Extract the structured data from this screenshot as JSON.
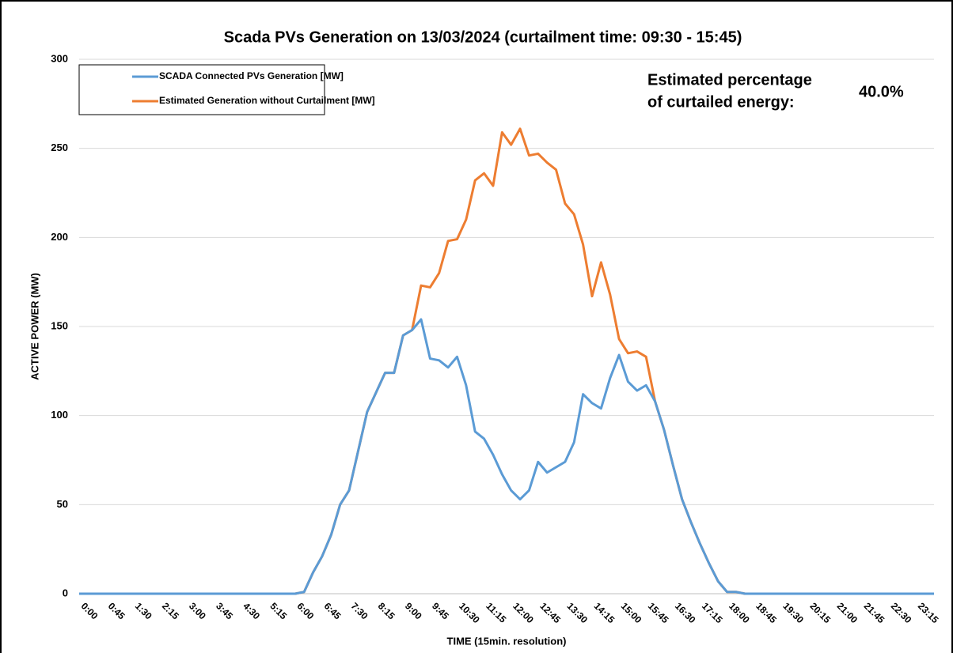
{
  "chart_data": {
    "type": "line",
    "title": "Scada PVs Generation on 13/03/2024 (curtailment time: 09:30 - 15:45)",
    "x_label": "TIME (15min. resolution)",
    "y_label": "ACTIVE POWER (MW)",
    "annotation_lines": [
      "Estimated percentage",
      "of curtailed energy:"
    ],
    "annotation_value": "40.0%",
    "categories": [
      "0:00",
      null,
      null,
      "0:45",
      null,
      null,
      "1:30",
      null,
      null,
      "2:15",
      null,
      null,
      "3:00",
      null,
      null,
      "3:45",
      null,
      null,
      "4:30",
      null,
      null,
      "5:15",
      null,
      null,
      "6:00",
      null,
      null,
      "6:45",
      null,
      null,
      "7:30",
      null,
      null,
      "8:15",
      null,
      null,
      "9:00",
      null,
      null,
      "9:45",
      null,
      null,
      "10:30",
      null,
      null,
      "11:15",
      null,
      null,
      "12:00",
      null,
      null,
      "12:45",
      null,
      null,
      "13:30",
      null,
      null,
      "14:15",
      null,
      null,
      "15:00",
      null,
      null,
      "15:45",
      null,
      null,
      "16:30",
      null,
      null,
      "17:15",
      null,
      null,
      "18:00",
      null,
      null,
      "18:45",
      null,
      null,
      "19:30",
      null,
      null,
      "20:15",
      null,
      null,
      "21:00",
      null,
      null,
      "21:45",
      null,
      null,
      "22:30",
      null,
      null,
      "23:15",
      null,
      null
    ],
    "series": [
      {
        "name": "SCADA Connected PVs Generation [MW]",
        "color": "#5b9bd5",
        "values": [
          0,
          0,
          0,
          0,
          0,
          0,
          0,
          0,
          0,
          0,
          0,
          0,
          0,
          0,
          0,
          0,
          0,
          0,
          0,
          0,
          0,
          0,
          0,
          0,
          0,
          1,
          12,
          21,
          33,
          50,
          58,
          80,
          102,
          113,
          124,
          124,
          145,
          148,
          154,
          132,
          131,
          127,
          133,
          117,
          91,
          87,
          78,
          67,
          58,
          53,
          58,
          74,
          68,
          71,
          74,
          85,
          112,
          107,
          104,
          121,
          134,
          119,
          114,
          117,
          108,
          92,
          72,
          53,
          40,
          28,
          17,
          7,
          1,
          1,
          0,
          0,
          0,
          0,
          0,
          0,
          0,
          0,
          0,
          0,
          0,
          0,
          0,
          0,
          0,
          0,
          0,
          0,
          0,
          0,
          0,
          0
        ]
      },
      {
        "name": "Estimated Generation without Curtailment [MW]",
        "color": "#ed7d31",
        "values": [
          0,
          0,
          0,
          0,
          0,
          0,
          0,
          0,
          0,
          0,
          0,
          0,
          0,
          0,
          0,
          0,
          0,
          0,
          0,
          0,
          0,
          0,
          0,
          0,
          0,
          1,
          12,
          21,
          33,
          50,
          58,
          80,
          102,
          113,
          124,
          124,
          145,
          148,
          173,
          172,
          180,
          198,
          199,
          210,
          232,
          236,
          229,
          259,
          252,
          261,
          246,
          247,
          242,
          238,
          219,
          213,
          196,
          167,
          186,
          168,
          143,
          135,
          136,
          133,
          108,
          92,
          72,
          53,
          40,
          28,
          17,
          7,
          1,
          1,
          0,
          0,
          0,
          0,
          0,
          0,
          0,
          0,
          0,
          0,
          0,
          0,
          0,
          0,
          0,
          0,
          0,
          0,
          0,
          0,
          0,
          0
        ]
      }
    ],
    "ylim": [
      0,
      300
    ],
    "yticks": [
      0,
      50,
      100,
      150,
      200,
      250,
      300
    ],
    "grid": true
  }
}
